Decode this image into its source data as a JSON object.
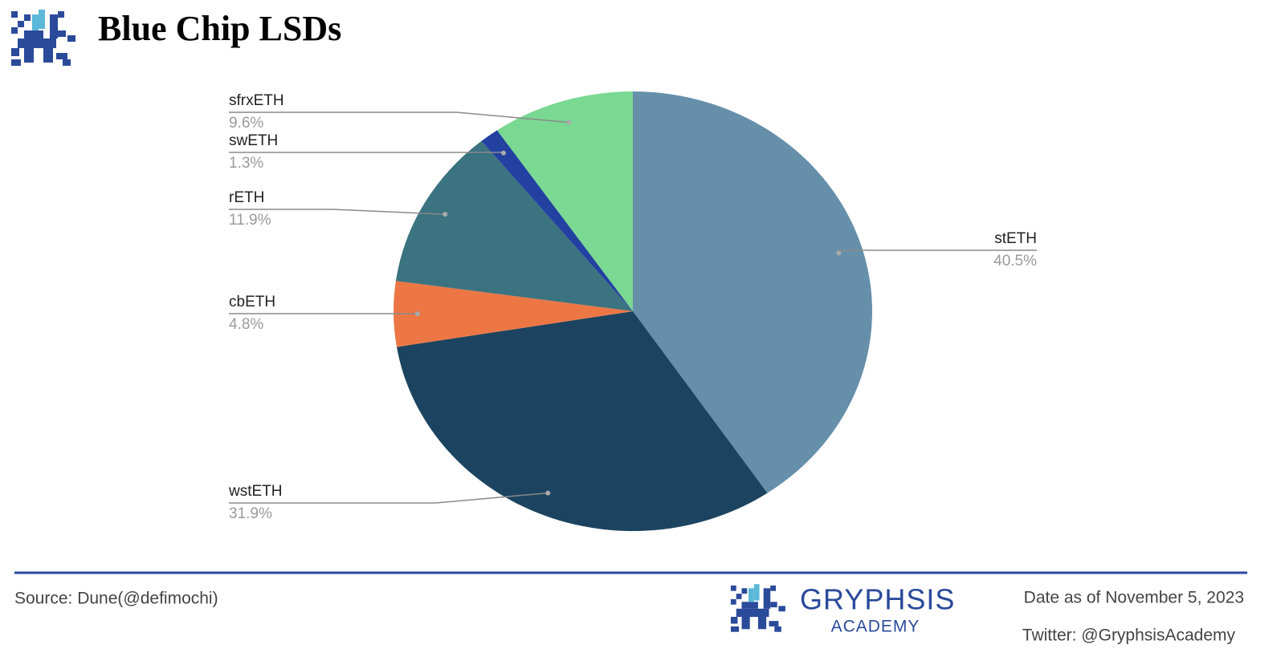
{
  "chart_data": {
    "type": "pie",
    "title": "Blue Chip LSDs",
    "categories": [
      "stETH",
      "wstETH",
      "cbETH",
      "rETH",
      "swETH",
      "sfrxETH"
    ],
    "values": [
      40.5,
      31.9,
      4.8,
      11.9,
      1.3,
      9.6
    ],
    "value_labels": [
      "40.5%",
      "31.9%",
      "4.8%",
      "11.9%",
      "1.3%",
      "9.6%"
    ],
    "colors": [
      "#668faa",
      "#1c4460",
      "#ec7745",
      "#3b7380",
      "#2241a0",
      "#79d891"
    ]
  },
  "footer": {
    "source": "Source: Dune(@defimochi)",
    "brand": "GRYPHSIS",
    "brand_sub": "ACADEMY",
    "date": "Date as of November 5, 2023",
    "twitter": "Twitter: @GryphsisAcademy"
  }
}
